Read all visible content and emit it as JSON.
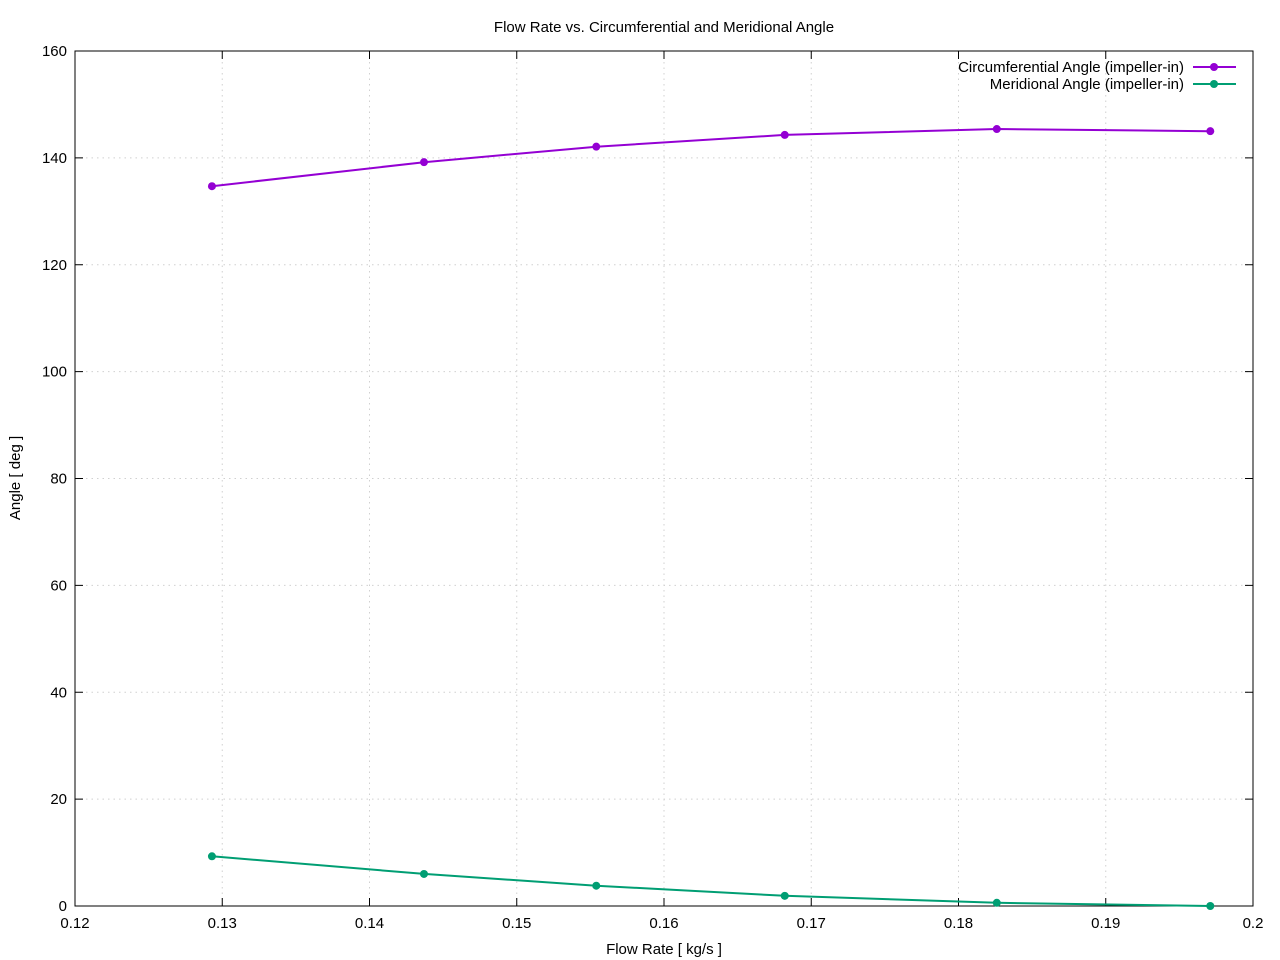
{
  "chart_data": {
    "type": "line",
    "title": "Flow Rate vs. Circumferential and Meridional Angle",
    "xlabel": "Flow Rate [ kg/s ]",
    "ylabel": "Angle [ deg ]",
    "xlim": [
      0.12,
      0.2
    ],
    "ylim": [
      0,
      160
    ],
    "xticks": [
      "0.12",
      "0.13",
      "0.14",
      "0.15",
      "0.16",
      "0.17",
      "0.18",
      "0.19",
      "0.2"
    ],
    "yticks": [
      "0",
      "20",
      "40",
      "60",
      "80",
      "100",
      "120",
      "140",
      "160"
    ],
    "grid": true,
    "legend_position": "top-right",
    "series": [
      {
        "name": "Circumferential Angle (impeller-in)",
        "color": "#9400d3",
        "x": [
          0.1293,
          0.1437,
          0.1554,
          0.1682,
          0.1826,
          0.1971
        ],
        "y": [
          134.7,
          139.2,
          142.1,
          144.3,
          145.4,
          145.0
        ]
      },
      {
        "name": "Meridional Angle (impeller-in)",
        "color": "#009e73",
        "x": [
          0.1293,
          0.1437,
          0.1554,
          0.1682,
          0.1826,
          0.1971
        ],
        "y": [
          9.3,
          6.0,
          3.8,
          1.9,
          0.6,
          0.0
        ]
      }
    ]
  }
}
